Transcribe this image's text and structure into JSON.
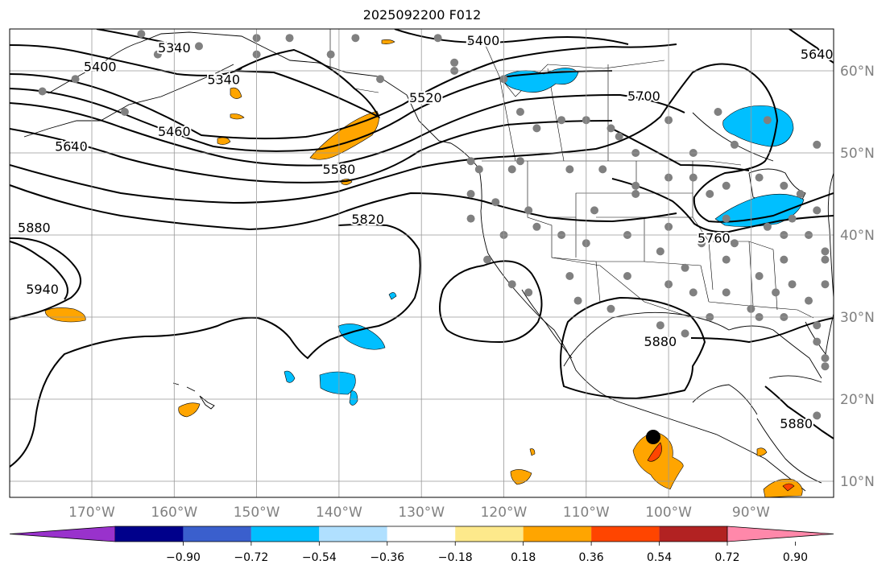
{
  "title": "2025092200 F012",
  "map": {
    "lon_range": [
      -180,
      -80
    ],
    "lat_range": [
      8,
      65
    ],
    "gridlines": true,
    "lon_ticks": [
      {
        "value": -170,
        "label": "170°W"
      },
      {
        "value": -160,
        "label": "160°W"
      },
      {
        "value": -150,
        "label": "150°W"
      },
      {
        "value": -140,
        "label": "140°W"
      },
      {
        "value": -130,
        "label": "130°W"
      },
      {
        "value": -120,
        "label": "120°W"
      },
      {
        "value": -110,
        "label": "110°W"
      },
      {
        "value": -100,
        "label": "100°W"
      },
      {
        "value": -90,
        "label": "90°W"
      }
    ],
    "lat_ticks": [
      {
        "value": 10,
        "label": "10°N"
      },
      {
        "value": 20,
        "label": "20°N"
      },
      {
        "value": 30,
        "label": "30°N"
      },
      {
        "value": 40,
        "label": "40°N"
      },
      {
        "value": 50,
        "label": "50°N"
      },
      {
        "value": 60,
        "label": "60°N"
      }
    ],
    "contour_labels": [
      {
        "text": "5340",
        "lon": -160,
        "lat": 62.7
      },
      {
        "text": "5400",
        "lon": -169,
        "lat": 60.4
      },
      {
        "text": "5400",
        "lon": -122.5,
        "lat": 63.6
      },
      {
        "text": "5340",
        "lon": -154,
        "lat": 58.8
      },
      {
        "text": "5460",
        "lon": -160,
        "lat": 52.5
      },
      {
        "text": "5640",
        "lon": -172.5,
        "lat": 50.7
      },
      {
        "text": "5580",
        "lon": -140,
        "lat": 47.9
      },
      {
        "text": "5520",
        "lon": -129.5,
        "lat": 56.6
      },
      {
        "text": "5700",
        "lon": -103,
        "lat": 56.8
      },
      {
        "text": "5820",
        "lon": -136.5,
        "lat": 41.8
      },
      {
        "text": "5880",
        "lon": -177,
        "lat": 40.8
      },
      {
        "text": "5940",
        "lon": -176,
        "lat": 33.3
      },
      {
        "text": "5760",
        "lon": -94.5,
        "lat": 39.5
      },
      {
        "text": "5880",
        "lon": -101,
        "lat": 26.9
      },
      {
        "text": "5880",
        "lon": -84.5,
        "lat": 16.9
      },
      {
        "text": "5640",
        "lon": -82,
        "lat": 61.9
      }
    ],
    "stations": [
      [
        -164,
        64.5
      ],
      [
        -146,
        64
      ],
      [
        -162,
        62
      ],
      [
        -157,
        63
      ],
      [
        -176,
        57.5
      ],
      [
        -166,
        55
      ],
      [
        -172,
        59
      ],
      [
        -155,
        59
      ],
      [
        -150,
        62
      ],
      [
        -150,
        64
      ],
      [
        -141,
        62
      ],
      [
        -138,
        64
      ],
      [
        -135,
        59
      ],
      [
        -131,
        57
      ],
      [
        -126,
        60
      ],
      [
        -120,
        59
      ],
      [
        -118,
        55
      ],
      [
        -116,
        53
      ],
      [
        -113,
        54
      ],
      [
        -110,
        54
      ],
      [
        -107,
        53
      ],
      [
        -106,
        52
      ],
      [
        -104,
        50
      ],
      [
        -100,
        54
      ],
      [
        -97,
        50
      ],
      [
        -94,
        55
      ],
      [
        -92,
        51
      ],
      [
        -88,
        54
      ],
      [
        -82,
        51
      ],
      [
        -124,
        49
      ],
      [
        -123,
        48
      ],
      [
        -118,
        49
      ],
      [
        -119,
        48
      ],
      [
        -112,
        48
      ],
      [
        -108,
        48
      ],
      [
        -104,
        46
      ],
      [
        -100,
        47
      ],
      [
        -97,
        47
      ],
      [
        -95,
        45
      ],
      [
        -93,
        46
      ],
      [
        -89,
        47
      ],
      [
        -86,
        46
      ],
      [
        -84,
        45
      ],
      [
        -82,
        43
      ],
      [
        -124,
        45
      ],
      [
        -124,
        42
      ],
      [
        -121,
        44
      ],
      [
        -117,
        43
      ],
      [
        -116,
        41
      ],
      [
        -113,
        40
      ],
      [
        -109,
        43
      ],
      [
        -105,
        40
      ],
      [
        -100,
        41
      ],
      [
        -104,
        45
      ],
      [
        -110,
        39
      ],
      [
        -96,
        39
      ],
      [
        -92,
        39
      ],
      [
        -88,
        41
      ],
      [
        -85,
        42
      ],
      [
        -93,
        42
      ],
      [
        -120,
        40
      ],
      [
        -122,
        37
      ],
      [
        -119,
        34
      ],
      [
        -117,
        33
      ],
      [
        -112,
        35
      ],
      [
        -105,
        35
      ],
      [
        -100,
        34
      ],
      [
        -98,
        36
      ],
      [
        -101,
        38
      ],
      [
        -97,
        33
      ],
      [
        -93,
        33
      ],
      [
        -90,
        31
      ],
      [
        -87,
        33
      ],
      [
        -85,
        34
      ],
      [
        -83,
        32
      ],
      [
        -81,
        34
      ],
      [
        -93,
        37
      ],
      [
        -89,
        35
      ],
      [
        -86,
        37
      ],
      [
        -81,
        37
      ],
      [
        -107,
        31
      ],
      [
        -111,
        32
      ],
      [
        -98,
        28
      ],
      [
        -101,
        29
      ],
      [
        -95,
        30
      ],
      [
        -89,
        30
      ],
      [
        -86,
        30
      ],
      [
        -82,
        29
      ],
      [
        -81,
        25
      ],
      [
        -82,
        27
      ],
      [
        -81,
        24
      ],
      [
        -82,
        18
      ],
      [
        -81,
        38
      ],
      [
        -86,
        40
      ],
      [
        -83,
        40
      ],
      [
        -128,
        64
      ],
      [
        -126,
        61
      ]
    ],
    "colorbar": {
      "colors": [
        "#9932cc",
        "#00008b",
        "#3a5fcd",
        "#00bfff",
        "#b0e0ff",
        "#ffffff",
        "#fde98b",
        "#ffa500",
        "#ff4500",
        "#b22222",
        "#ff88aa"
      ],
      "tick_labels": [
        "−0.90",
        "−0.72",
        "−0.54",
        "−0.36",
        "−0.18",
        "0.18",
        "0.36",
        "0.54",
        "0.72",
        "0.90"
      ]
    }
  }
}
